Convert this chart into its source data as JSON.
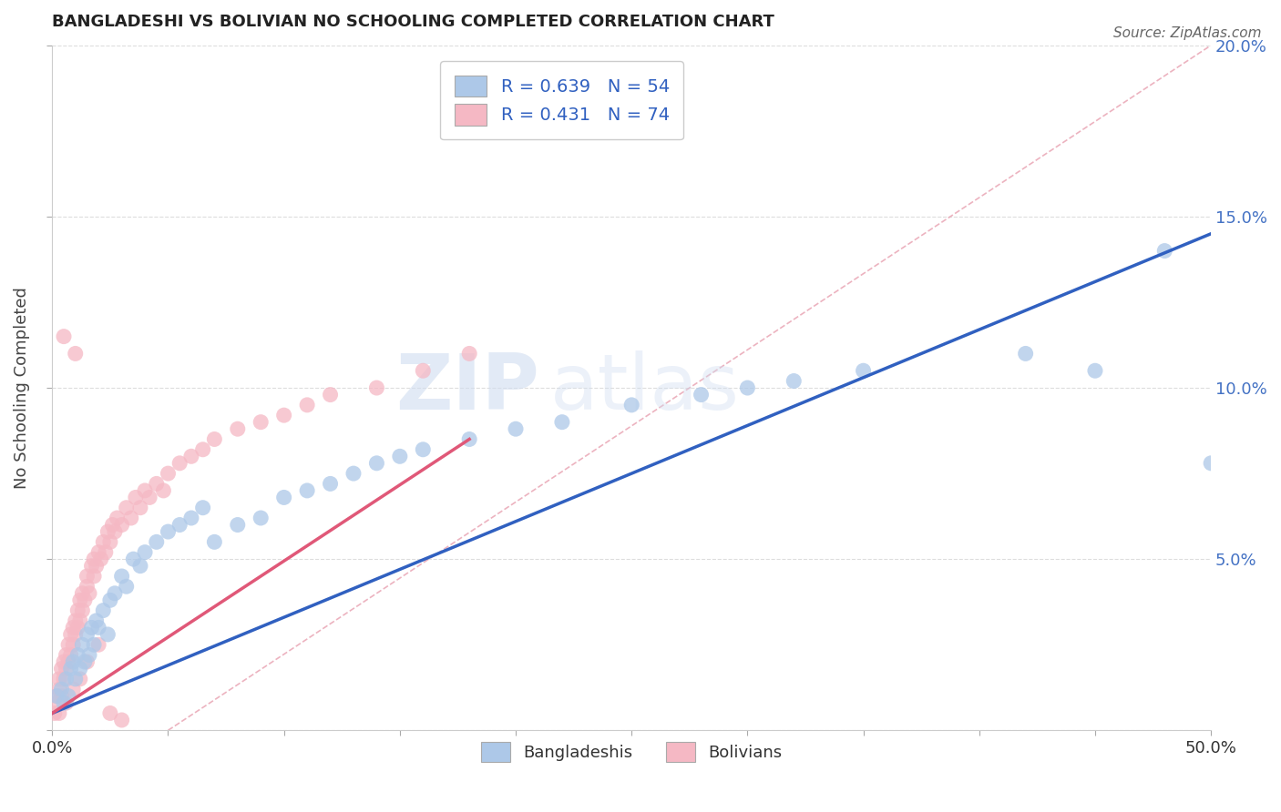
{
  "title": "BANGLADESHI VS BOLIVIAN NO SCHOOLING COMPLETED CORRELATION CHART",
  "source": "Source: ZipAtlas.com",
  "ylabel": "No Schooling Completed",
  "xlim": [
    0.0,
    0.5
  ],
  "ylim": [
    0.0,
    0.2
  ],
  "blue_R": 0.639,
  "blue_N": 54,
  "pink_R": 0.431,
  "pink_N": 74,
  "blue_color": "#adc8e8",
  "pink_color": "#f5b8c4",
  "blue_line_color": "#3060c0",
  "pink_line_color": "#e05878",
  "dashed_line_color": "#e8a0b0",
  "watermark_zip": "ZIP",
  "watermark_atlas": "atlas",
  "legend_label_blue": "Bangladeshis",
  "legend_label_pink": "Bolivians",
  "blue_line_x0": 0.0,
  "blue_line_y0": 0.005,
  "blue_line_x1": 0.5,
  "blue_line_y1": 0.145,
  "pink_line_x0": 0.0,
  "pink_line_y0": 0.005,
  "pink_line_x1": 0.18,
  "pink_line_y1": 0.085,
  "dashed_line_x0": 0.05,
  "dashed_line_y0": 0.0,
  "dashed_line_x1": 0.5,
  "dashed_line_y1": 0.2,
  "blue_scatter_x": [
    0.002,
    0.004,
    0.005,
    0.006,
    0.007,
    0.008,
    0.009,
    0.01,
    0.011,
    0.012,
    0.013,
    0.014,
    0.015,
    0.016,
    0.017,
    0.018,
    0.019,
    0.02,
    0.022,
    0.024,
    0.025,
    0.027,
    0.03,
    0.032,
    0.035,
    0.038,
    0.04,
    0.045,
    0.05,
    0.055,
    0.06,
    0.065,
    0.07,
    0.08,
    0.09,
    0.1,
    0.11,
    0.12,
    0.13,
    0.14,
    0.15,
    0.16,
    0.18,
    0.2,
    0.22,
    0.25,
    0.28,
    0.3,
    0.32,
    0.35,
    0.42,
    0.45,
    0.48,
    0.5
  ],
  "blue_scatter_y": [
    0.01,
    0.012,
    0.008,
    0.015,
    0.01,
    0.018,
    0.02,
    0.015,
    0.022,
    0.018,
    0.025,
    0.02,
    0.028,
    0.022,
    0.03,
    0.025,
    0.032,
    0.03,
    0.035,
    0.028,
    0.038,
    0.04,
    0.045,
    0.042,
    0.05,
    0.048,
    0.052,
    0.055,
    0.058,
    0.06,
    0.062,
    0.065,
    0.055,
    0.06,
    0.062,
    0.068,
    0.07,
    0.072,
    0.075,
    0.078,
    0.08,
    0.082,
    0.085,
    0.088,
    0.09,
    0.095,
    0.098,
    0.1,
    0.102,
    0.105,
    0.11,
    0.105,
    0.14,
    0.078
  ],
  "pink_scatter_x": [
    0.001,
    0.002,
    0.002,
    0.003,
    0.003,
    0.004,
    0.004,
    0.005,
    0.005,
    0.006,
    0.006,
    0.007,
    0.007,
    0.008,
    0.008,
    0.009,
    0.009,
    0.01,
    0.01,
    0.011,
    0.011,
    0.012,
    0.012,
    0.013,
    0.013,
    0.014,
    0.015,
    0.015,
    0.016,
    0.017,
    0.018,
    0.018,
    0.019,
    0.02,
    0.021,
    0.022,
    0.023,
    0.024,
    0.025,
    0.026,
    0.027,
    0.028,
    0.03,
    0.032,
    0.034,
    0.036,
    0.038,
    0.04,
    0.042,
    0.045,
    0.048,
    0.05,
    0.055,
    0.06,
    0.065,
    0.07,
    0.08,
    0.09,
    0.1,
    0.11,
    0.12,
    0.14,
    0.16,
    0.18,
    0.003,
    0.006,
    0.009,
    0.012,
    0.015,
    0.02,
    0.025,
    0.03,
    0.01,
    0.005
  ],
  "pink_scatter_y": [
    0.005,
    0.008,
    0.01,
    0.012,
    0.015,
    0.01,
    0.018,
    0.015,
    0.02,
    0.018,
    0.022,
    0.02,
    0.025,
    0.022,
    0.028,
    0.025,
    0.03,
    0.028,
    0.032,
    0.03,
    0.035,
    0.032,
    0.038,
    0.035,
    0.04,
    0.038,
    0.042,
    0.045,
    0.04,
    0.048,
    0.045,
    0.05,
    0.048,
    0.052,
    0.05,
    0.055,
    0.052,
    0.058,
    0.055,
    0.06,
    0.058,
    0.062,
    0.06,
    0.065,
    0.062,
    0.068,
    0.065,
    0.07,
    0.068,
    0.072,
    0.07,
    0.075,
    0.078,
    0.08,
    0.082,
    0.085,
    0.088,
    0.09,
    0.092,
    0.095,
    0.098,
    0.1,
    0.105,
    0.11,
    0.005,
    0.008,
    0.012,
    0.015,
    0.02,
    0.025,
    0.005,
    0.003,
    0.11,
    0.115
  ]
}
